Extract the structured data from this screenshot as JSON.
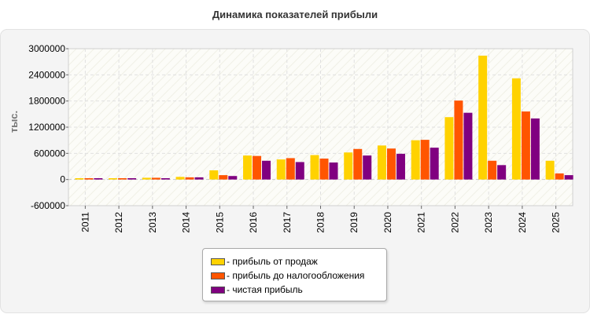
{
  "chart_data": {
    "type": "bar",
    "title": "Динамика показателей прибыли",
    "ylabel": "тыс.",
    "xlabel": "",
    "ylim": [
      -600000,
      3000000
    ],
    "yticks": [
      "3000000",
      "2400000",
      "1800000",
      "1200000",
      "600000",
      "0",
      "-600000"
    ],
    "ytick_values": [
      3000000,
      2400000,
      1800000,
      1200000,
      600000,
      0,
      -600000
    ],
    "categories": [
      "2011",
      "2012",
      "2013",
      "2014",
      "2015",
      "2016",
      "2017",
      "2018",
      "2019",
      "2020",
      "2021",
      "2022",
      "2023",
      "2024",
      "2025"
    ],
    "series": [
      {
        "name": "- прибыль от продаж",
        "color": "#ffd200",
        "values": [
          30000,
          30000,
          40000,
          60000,
          210000,
          550000,
          460000,
          560000,
          620000,
          780000,
          900000,
          1430000,
          2840000,
          2320000,
          430000
        ]
      },
      {
        "name": "- прибыль до налогообложения",
        "color": "#ff5500",
        "values": [
          30000,
          30000,
          40000,
          50000,
          100000,
          540000,
          490000,
          480000,
          700000,
          710000,
          910000,
          1810000,
          430000,
          1560000,
          140000
        ]
      },
      {
        "name": "- чистая прибыль",
        "color": "#800080",
        "values": [
          30000,
          30000,
          30000,
          50000,
          80000,
          430000,
          400000,
          390000,
          550000,
          590000,
          730000,
          1530000,
          330000,
          1400000,
          100000
        ]
      }
    ],
    "grid": true,
    "legend_position": "bottom"
  }
}
